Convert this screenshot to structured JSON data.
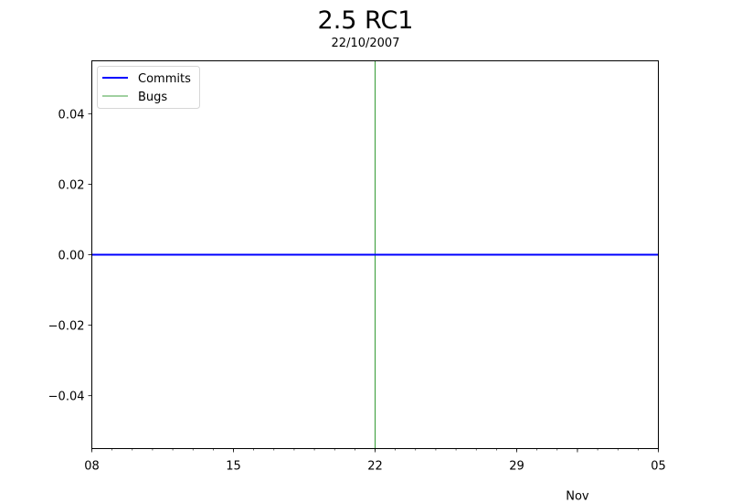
{
  "chart_data": {
    "type": "line",
    "title": "2.5 RC1",
    "subtitle": "22/10/2007",
    "xlabel": "",
    "ylabel": "",
    "x_range": [
      "2007-10-08",
      "2007-11-05"
    ],
    "ylim": [
      -0.055,
      0.055
    ],
    "y_ticks": [
      {
        "value": 0.04,
        "label": "0.04"
      },
      {
        "value": 0.02,
        "label": "0.02"
      },
      {
        "value": 0.0,
        "label": "0.00"
      },
      {
        "value": -0.02,
        "label": "−0.02"
      },
      {
        "value": -0.04,
        "label": "−0.04"
      }
    ],
    "x_major_ticks": [
      {
        "date": "2007-10-08",
        "label": "08"
      },
      {
        "date": "2007-10-15",
        "label": "15"
      },
      {
        "date": "2007-10-22",
        "label": "22"
      },
      {
        "date": "2007-10-29",
        "label": "29"
      },
      {
        "date": "2007-11-05",
        "label": "05"
      }
    ],
    "x_month_labels": [
      {
        "date": "2007-11-01",
        "label": "Nov"
      }
    ],
    "series": [
      {
        "name": "Commits",
        "color": "#0000ff",
        "points": [
          {
            "x": "2007-10-08",
            "y": 0
          },
          {
            "x": "2007-11-05",
            "y": 0
          }
        ]
      },
      {
        "name": "Bugs",
        "color": "#008000",
        "points": []
      }
    ],
    "vertical_marker": {
      "x": "2007-10-22",
      "color": "#008000"
    },
    "legend": "top-left",
    "grid": false
  }
}
